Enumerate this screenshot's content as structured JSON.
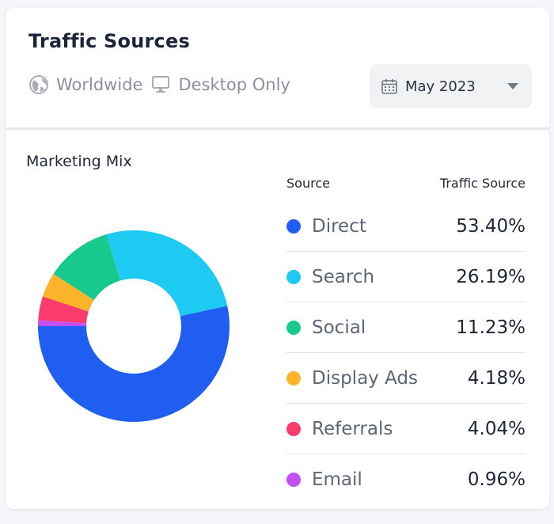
{
  "header": {
    "title": "Traffic Sources",
    "region": "Worldwide",
    "device": "Desktop Only",
    "date": "May 2023"
  },
  "section": {
    "title": "Marketing Mix"
  },
  "table": {
    "col_source": "Source",
    "col_value": "Traffic Source",
    "rows": [
      {
        "source": "Direct",
        "value": "53.40%"
      },
      {
        "source": "Search",
        "value": "26.19%"
      },
      {
        "source": "Social",
        "value": "11.23%"
      },
      {
        "source": "Display Ads",
        "value": "4.18%"
      },
      {
        "source": "Referrals",
        "value": "4.04%"
      },
      {
        "source": "Email",
        "value": "0.96%"
      }
    ]
  },
  "chart_data": {
    "type": "pie",
    "variant": "donut",
    "title": "Marketing Mix",
    "categories": [
      "Direct",
      "Search",
      "Social",
      "Display Ads",
      "Referrals",
      "Email"
    ],
    "values": [
      53.4,
      26.19,
      11.23,
      4.18,
      4.04,
      0.96
    ],
    "colors": [
      "#1f5ef0",
      "#1fcaf2",
      "#17c98f",
      "#fcb42b",
      "#f93c6c",
      "#c250f5"
    ]
  },
  "icons": {
    "region": "globe-icon",
    "device": "desktop-icon",
    "date": "calendar-icon",
    "dropdown": "caret-down-icon"
  }
}
